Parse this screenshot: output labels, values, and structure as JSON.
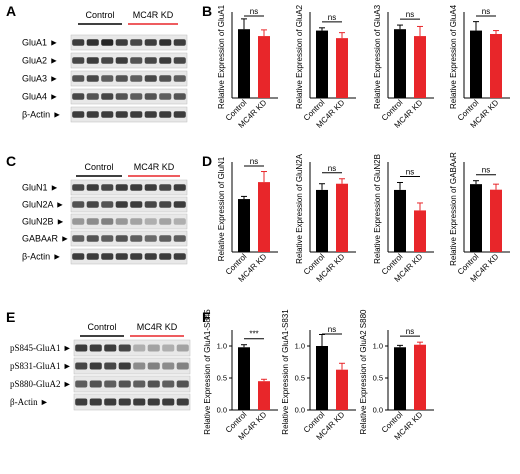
{
  "colors": {
    "control": "#000000",
    "kd": "#e8262a",
    "control_underline": "#000000",
    "kd_underline": "#e8262a"
  },
  "panels": [
    {
      "letter": "A",
      "groups": [
        "Control",
        "MC4R KD"
      ],
      "rows": [
        "GluA1",
        "GluA2",
        "GluA3",
        "GluA4",
        "β-Actin"
      ]
    },
    {
      "letter": "C",
      "groups": [
        "Control",
        "MC4R KD"
      ],
      "rows": [
        "GluN1",
        "GluN2A",
        "GluN2B",
        "GABAᴀR",
        "β-Actin"
      ]
    },
    {
      "letter": "E",
      "groups": [
        "Control",
        "MC4R KD"
      ],
      "rows": [
        "pS845-GluA1",
        "pS831-GluA1",
        "pS880-GluA2",
        "β-Actin"
      ]
    }
  ],
  "chart_panels": [
    {
      "letter": "B"
    },
    {
      "letter": "D"
    },
    {
      "letter": "F"
    }
  ],
  "chart_data": [
    {
      "type": "bar",
      "panel": "B",
      "categories": [
        "Control",
        "MC4R KD"
      ],
      "ylabel": "Relative Expression of GluA1",
      "ylim": [
        0,
        1.25
      ],
      "yticks": [],
      "values": [
        1.0,
        0.9
      ],
      "errors": [
        0.15,
        0.09
      ],
      "significance": "ns"
    },
    {
      "type": "bar",
      "panel": "B",
      "categories": [
        "Control",
        "MC4R KD"
      ],
      "ylabel": "Relative Expression of GluA2",
      "ylim": [
        0,
        1.25
      ],
      "yticks": [],
      "values": [
        0.98,
        0.87
      ],
      "errors": [
        0.04,
        0.08
      ],
      "significance": "ns"
    },
    {
      "type": "bar",
      "panel": "B",
      "categories": [
        "Control",
        "MC4R KD"
      ],
      "ylabel": "Relative Expression of GluA3",
      "ylim": [
        0,
        1.25
      ],
      "yticks": [],
      "values": [
        1.0,
        0.9
      ],
      "errors": [
        0.06,
        0.14
      ],
      "significance": "ns"
    },
    {
      "type": "bar",
      "panel": "B",
      "categories": [
        "Control",
        "MC4R KD"
      ],
      "ylabel": "Relative Expression of GluA4",
      "ylim": [
        0,
        1.25
      ],
      "yticks": [],
      "values": [
        0.98,
        0.93
      ],
      "errors": [
        0.13,
        0.05
      ],
      "significance": "ns"
    },
    {
      "type": "bar",
      "panel": "D",
      "categories": [
        "Control",
        "MC4R KD"
      ],
      "ylabel": "Relative Expression of GluN1",
      "ylim": [
        0,
        1.7
      ],
      "yticks": [],
      "values": [
        1.0,
        1.32
      ],
      "errors": [
        0.05,
        0.2
      ],
      "significance": "ns"
    },
    {
      "type": "bar",
      "panel": "D",
      "categories": [
        "Control",
        "MC4R KD"
      ],
      "ylabel": "Relative Expression of GluN2A",
      "ylim": [
        0,
        1.45
      ],
      "yticks": [],
      "values": [
        1.0,
        1.1
      ],
      "errors": [
        0.1,
        0.08
      ],
      "significance": "ns"
    },
    {
      "type": "bar",
      "panel": "D",
      "categories": [
        "Control",
        "MC4R KD"
      ],
      "ylabel": "Relative Expression of GluN2B",
      "ylim": [
        0,
        1.45
      ],
      "yticks": [],
      "values": [
        1.0,
        0.67
      ],
      "errors": [
        0.12,
        0.12
      ],
      "significance": "ns"
    },
    {
      "type": "bar",
      "panel": "D",
      "categories": [
        "Control",
        "MC4R KD"
      ],
      "ylabel": "Relative Expression of GABAᴀR",
      "ylim": [
        0,
        1.3
      ],
      "yticks": [],
      "values": [
        0.98,
        0.9
      ],
      "errors": [
        0.05,
        0.08
      ],
      "significance": "ns"
    },
    {
      "type": "bar",
      "panel": "F",
      "categories": [
        "Control",
        "MC4R KD"
      ],
      "ylabel": "Relative Expression of GluA1-S845",
      "ylim": [
        0,
        1.25
      ],
      "yticks": [
        "0.0",
        "0.5",
        "1.0"
      ],
      "values": [
        0.98,
        0.45
      ],
      "errors": [
        0.04,
        0.03
      ],
      "significance": "***"
    },
    {
      "type": "bar",
      "panel": "F",
      "categories": [
        "Control",
        "MC4R KD"
      ],
      "ylabel": "Relative Expression of GluA1-S831",
      "ylim": [
        0,
        1.25
      ],
      "yticks": [
        "0.0",
        "0.5",
        "1.0"
      ],
      "values": [
        1.0,
        0.63
      ],
      "errors": [
        0.18,
        0.1
      ],
      "significance": "ns"
    },
    {
      "type": "bar",
      "panel": "F",
      "categories": [
        "Control",
        "MC4R KD"
      ],
      "ylabel": "Relative Expression of GluA2 S880",
      "ylim": [
        0,
        1.25
      ],
      "yticks": [
        "0.0",
        "0.5",
        "1.0"
      ],
      "values": [
        0.98,
        1.02
      ],
      "errors": [
        0.03,
        0.04
      ],
      "significance": "ns"
    }
  ],
  "blots": [
    [
      [
        0.85,
        0.9,
        0.95,
        0.85,
        0.8,
        0.85,
        0.9,
        0.85
      ],
      [
        0.8,
        0.85,
        0.8,
        0.85,
        0.75,
        0.8,
        0.85,
        0.8
      ],
      [
        0.75,
        0.8,
        0.7,
        0.75,
        0.7,
        0.8,
        0.75,
        0.7
      ],
      [
        0.8,
        0.75,
        0.8,
        0.75,
        0.7,
        0.75,
        0.7,
        0.75
      ],
      [
        0.85,
        0.85,
        0.85,
        0.85,
        0.85,
        0.85,
        0.85,
        0.85
      ]
    ],
    [
      [
        0.8,
        0.85,
        0.8,
        0.85,
        0.85,
        0.85,
        0.8,
        0.85
      ],
      [
        0.75,
        0.8,
        0.75,
        0.85,
        0.85,
        0.8,
        0.8,
        0.85
      ],
      [
        0.45,
        0.5,
        0.55,
        0.45,
        0.4,
        0.35,
        0.4,
        0.35
      ],
      [
        0.7,
        0.75,
        0.7,
        0.75,
        0.7,
        0.65,
        0.7,
        0.7
      ],
      [
        0.85,
        0.85,
        0.85,
        0.85,
        0.85,
        0.85,
        0.85,
        0.85
      ]
    ],
    [
      [
        0.85,
        0.85,
        0.85,
        0.8,
        0.35,
        0.4,
        0.35,
        0.4
      ],
      [
        0.8,
        0.85,
        0.8,
        0.85,
        0.5,
        0.55,
        0.5,
        0.55
      ],
      [
        0.7,
        0.75,
        0.7,
        0.75,
        0.7,
        0.75,
        0.7,
        0.75
      ],
      [
        0.85,
        0.85,
        0.85,
        0.85,
        0.85,
        0.85,
        0.85,
        0.85
      ]
    ]
  ]
}
